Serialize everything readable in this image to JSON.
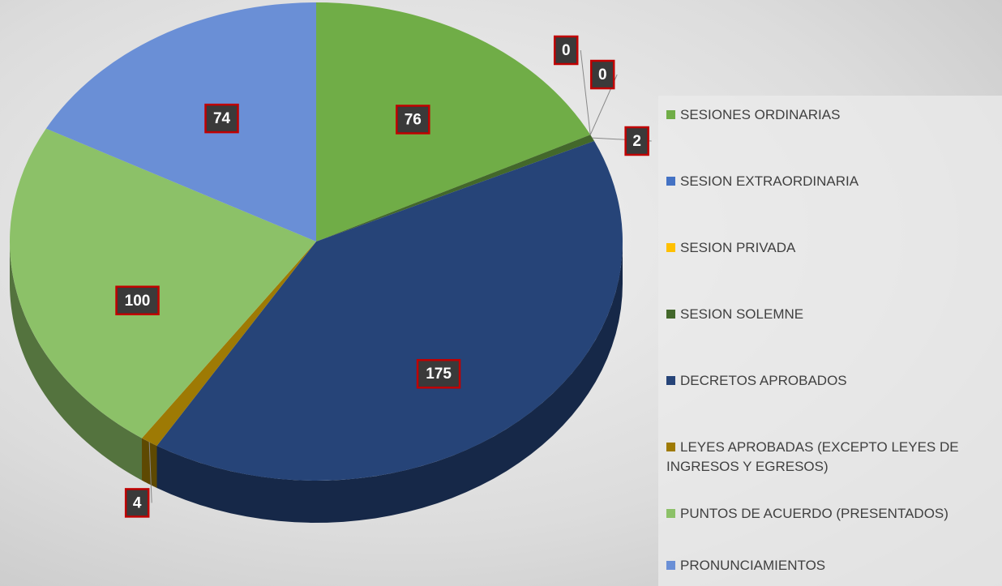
{
  "chart_data": {
    "type": "pie",
    "categories": [
      "SESIONES ORDINARIAS",
      "SESION EXTRAORDINARIA",
      "SESION PRIVADA",
      "SESION SOLEMNE",
      "DECRETOS APROBADOS",
      "LEYES APROBADAS (EXCEPTO LEYES DE INGRESOS Y EGRESOS)",
      "PUNTOS DE ACUERDO (PRESENTADOS)",
      "PRONUNCIAMIENTOS"
    ],
    "values": [
      76,
      0,
      0,
      2,
      175,
      4,
      100,
      74
    ],
    "colors": [
      "#70ad47",
      "#4472c4",
      "#ffc000",
      "#43682b",
      "#264478",
      "#9e7a04",
      "#8cc168",
      "#6a8fd6"
    ],
    "legend": "right",
    "three_d": true
  }
}
